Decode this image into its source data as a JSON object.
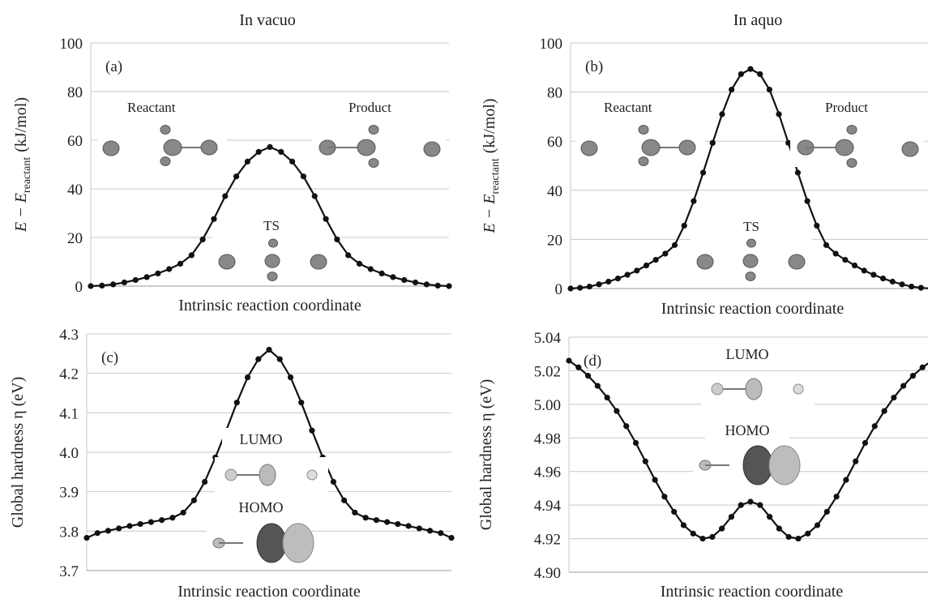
{
  "column_titles": [
    "In vacuo",
    "In aquo"
  ],
  "chart_data": [
    {
      "type": "line",
      "panel": "(a)",
      "xlabel": "Intrinsic reaction coordinate",
      "ylabel": "E − E_reactant (kJ/mol)",
      "ylabel_main": "E − E",
      "ylabel_sub": "reactant",
      "ylabel_unit": "(kJ/mol)",
      "ylim": [
        0,
        100
      ],
      "yticks": [
        "0",
        "20",
        "40",
        "60",
        "80",
        "100"
      ],
      "grid": true,
      "annotations": [
        "Reactant",
        "Product",
        "TS"
      ],
      "series": [
        {
          "values": [
            0.0,
            0.2,
            0.7,
            1.5,
            2.5,
            3.7,
            5.2,
            7.0,
            9.2,
            12.7,
            19.2,
            27.6,
            37.0,
            45.1,
            51.2,
            55.2,
            57.2,
            55.2,
            51.2,
            45.1,
            37.0,
            27.6,
            19.2,
            12.7,
            9.2,
            7.0,
            5.2,
            3.7,
            2.5,
            1.5,
            0.7,
            0.2,
            0.0
          ]
        }
      ]
    },
    {
      "type": "line",
      "panel": "(b)",
      "xlabel": "Intrinsic reaction coordinate",
      "ylabel": "E − E_reactant (kJ/mol)",
      "ylabel_main": "E − E",
      "ylabel_sub": "reactant",
      "ylabel_unit": "(kJ/mol)",
      "ylim": [
        0,
        100
      ],
      "yticks": [
        "0",
        "20",
        "40",
        "60",
        "80",
        "100"
      ],
      "grid": true,
      "annotations": [
        "Reactant",
        "Product",
        "TS"
      ],
      "series": [
        {
          "values": [
            0.0,
            0.3,
            0.8,
            1.7,
            2.8,
            4.1,
            5.6,
            7.3,
            9.4,
            11.7,
            14.2,
            17.7,
            25.6,
            35.6,
            47.2,
            59.3,
            71.0,
            81.0,
            87.3,
            89.4,
            87.3,
            81.0,
            71.0,
            59.3,
            47.2,
            35.6,
            25.6,
            17.7,
            14.2,
            11.7,
            9.4,
            7.3,
            5.6,
            4.1,
            2.8,
            1.7,
            0.8,
            0.3,
            0.0
          ]
        }
      ]
    },
    {
      "type": "line",
      "panel": "(c)",
      "xlabel": "Intrinsic reaction coordinate",
      "ylabel": "Global hardness η (eV)",
      "ylim": [
        3.7,
        4.3
      ],
      "yticks": [
        "3.7",
        "3.8",
        "3.9",
        "4.0",
        "4.1",
        "4.2",
        "4.3"
      ],
      "grid": true,
      "annotations": [
        "LUMO",
        "HOMO"
      ],
      "series": [
        {
          "values": [
            3.783,
            3.795,
            3.801,
            3.807,
            3.813,
            3.818,
            3.823,
            3.828,
            3.834,
            3.847,
            3.878,
            3.925,
            3.987,
            4.055,
            4.126,
            4.19,
            4.236,
            4.26,
            4.236,
            4.19,
            4.126,
            4.055,
            3.987,
            3.925,
            3.878,
            3.847,
            3.834,
            3.828,
            3.823,
            3.818,
            3.813,
            3.807,
            3.801,
            3.795,
            3.783
          ]
        }
      ]
    },
    {
      "type": "line",
      "panel": "(d)",
      "xlabel": "Intrinsic reaction coordinate",
      "ylabel": "Global hardness η (eV)",
      "ylim": [
        4.9,
        5.04
      ],
      "yticks": [
        "4.90",
        "4.92",
        "4.94",
        "4.96",
        "4.98",
        "5.00",
        "5.02",
        "5.04"
      ],
      "grid": true,
      "annotations": [
        "LUMO",
        "HOMO"
      ],
      "series": [
        {
          "values": [
            5.026,
            5.022,
            5.017,
            5.011,
            5.004,
            4.996,
            4.987,
            4.977,
            4.966,
            4.955,
            4.945,
            4.936,
            4.928,
            4.923,
            4.92,
            4.921,
            4.926,
            4.933,
            4.94,
            4.942,
            4.94,
            4.933,
            4.926,
            4.921,
            4.92,
            4.923,
            4.928,
            4.936,
            4.945,
            4.955,
            4.966,
            4.977,
            4.987,
            4.996,
            5.004,
            5.011,
            5.017,
            5.022,
            5.026
          ]
        }
      ]
    }
  ]
}
